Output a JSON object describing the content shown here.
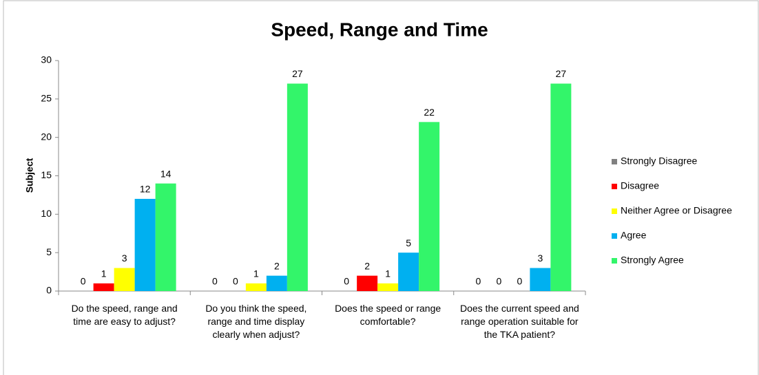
{
  "chart_data": {
    "type": "bar",
    "title": "Speed, Range and Time",
    "y_label": "Subject",
    "categories": [
      "Do the speed, range and time are easy to adjust?",
      "Do you think the speed, range and time display clearly when adjust?",
      "Does the speed or range comfortable?",
      "Does the current speed and range operation suitable for the TKA patient?"
    ],
    "series": [
      {
        "name": "Strongly Disagree",
        "color": "#808080",
        "values": [
          0,
          0,
          0,
          0
        ]
      },
      {
        "name": "Disagree",
        "color": "#ff0000",
        "values": [
          1,
          0,
          2,
          0
        ]
      },
      {
        "name": "Neither Agree or Disagree",
        "color": "#ffff00",
        "values": [
          3,
          1,
          1,
          0
        ]
      },
      {
        "name": "Agree",
        "color": "#00b0f0",
        "values": [
          12,
          2,
          5,
          3
        ]
      },
      {
        "name": "Strongly Agree",
        "color": "#33f56a",
        "values": [
          14,
          27,
          22,
          27
        ]
      }
    ],
    "ylim": [
      0,
      30
    ],
    "yticks": [
      0,
      5,
      10,
      15,
      20,
      25,
      30
    ],
    "grid": false,
    "legend": "right"
  }
}
